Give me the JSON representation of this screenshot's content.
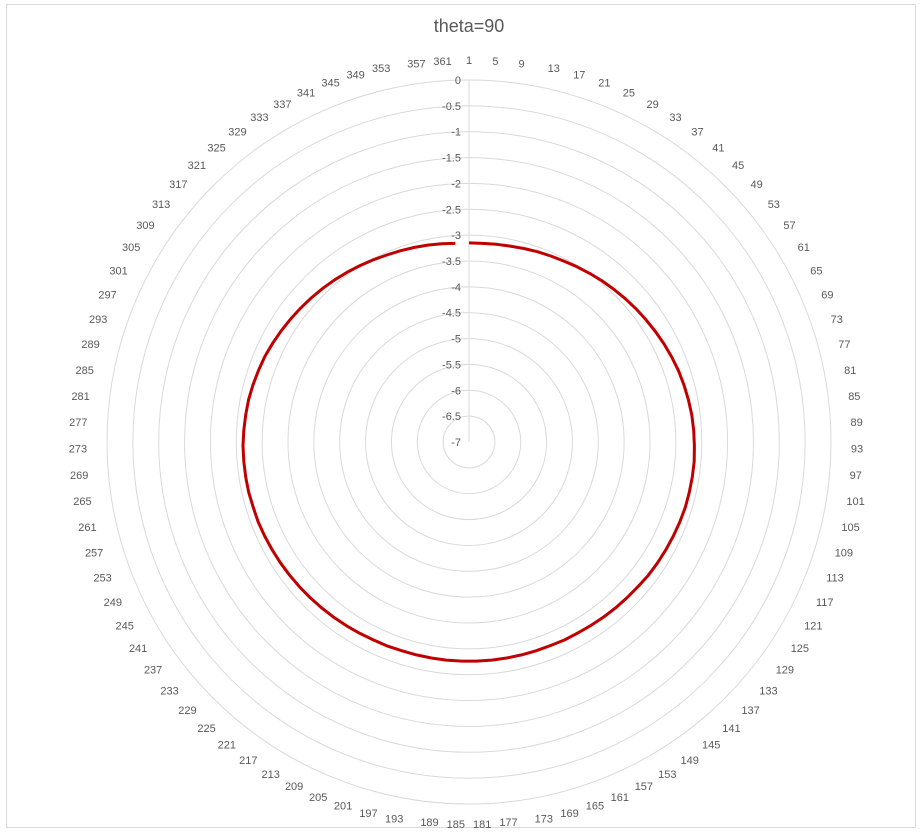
{
  "chart_data": {
    "type": "radar",
    "title": "theta=90",
    "categories": [
      "1",
      "5",
      "9",
      "13",
      "17",
      "21",
      "25",
      "29",
      "33",
      "37",
      "41",
      "45",
      "49",
      "53",
      "57",
      "61",
      "65",
      "69",
      "73",
      "77",
      "81",
      "85",
      "89",
      "93",
      "97",
      "101",
      "105",
      "109",
      "113",
      "117",
      "121",
      "125",
      "129",
      "133",
      "137",
      "141",
      "145",
      "149",
      "153",
      "157",
      "161",
      "165",
      "169",
      "173",
      "177",
      "181",
      "185",
      "189",
      "193",
      "197",
      "201",
      "205",
      "209",
      "213",
      "217",
      "221",
      "225",
      "229",
      "233",
      "237",
      "241",
      "245",
      "249",
      "253",
      "257",
      "261",
      "265",
      "269",
      "273",
      "277",
      "281",
      "285",
      "289",
      "293",
      "297",
      "301",
      "305",
      "309",
      "313",
      "317",
      "321",
      "325",
      "329",
      "333",
      "337",
      "341",
      "345",
      "349",
      "353",
      "357",
      "361"
    ],
    "radial_axis": {
      "max": 0,
      "min": -7,
      "step": 0.5,
      "tick_labels": [
        "0",
        "-0.5",
        "-1",
        "-1.5",
        "-2",
        "-2.5",
        "-3",
        "-3.5",
        "-4",
        "-4.5",
        "-5",
        "-5.5",
        "-6",
        "-6.5",
        "-7"
      ]
    },
    "series": [
      {
        "color": "#c00000",
        "values": [
          -3.15,
          -3.15,
          -3.14,
          -3.13,
          -3.11,
          -3.09,
          -3.07,
          -3.05,
          -3.02,
          -2.99,
          -2.96,
          -2.93,
          -2.9,
          -2.87,
          -2.84,
          -2.81,
          -2.78,
          -2.75,
          -2.72,
          -2.7,
          -2.68,
          -2.66,
          -2.65,
          -2.64,
          -2.63,
          -2.63,
          -2.63,
          -2.63,
          -2.64,
          -2.65,
          -2.66,
          -2.67,
          -2.68,
          -2.7,
          -2.71,
          -2.72,
          -2.73,
          -2.74,
          -2.75,
          -2.75,
          -2.76,
          -2.76,
          -2.76,
          -2.76,
          -2.76,
          -2.76,
          -2.76,
          -2.76,
          -2.76,
          -2.76,
          -2.76,
          -2.75,
          -2.75,
          -2.74,
          -2.73,
          -2.72,
          -2.71,
          -2.7,
          -2.69,
          -2.68,
          -2.67,
          -2.66,
          -2.65,
          -2.64,
          -2.64,
          -2.63,
          -2.63,
          -2.63,
          -2.63,
          -2.64,
          -2.65,
          -2.66,
          -2.68,
          -2.7,
          -2.72,
          -2.75,
          -2.78,
          -2.81,
          -2.84,
          -2.87,
          -2.9,
          -2.93,
          -2.96,
          -2.99,
          -3.02,
          -3.05,
          -3.07,
          -3.09,
          -3.11,
          -3.13,
          -3.15
        ]
      }
    ],
    "grid": true,
    "legend": "none"
  }
}
